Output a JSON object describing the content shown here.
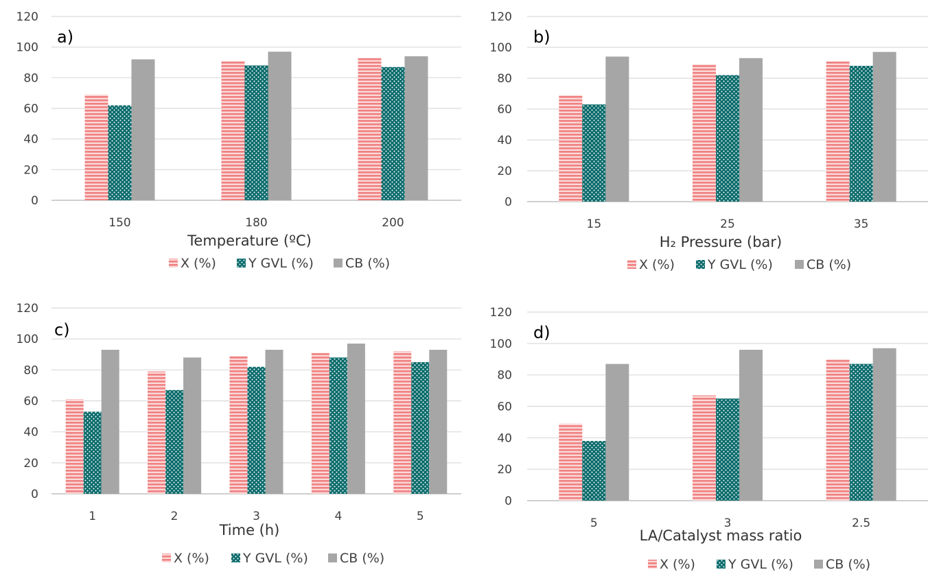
{
  "colors": {
    "x": "#f08080",
    "y": "#0b6b6b",
    "cb": "#a6a6a6"
  },
  "chart_data": [
    {
      "type": "bar",
      "panel_label": "a)",
      "categories": [
        "150",
        "180",
        "200"
      ],
      "xlabel": "Temperature (ºC)",
      "ylabel": "",
      "ylim": [
        0,
        120
      ],
      "yticks": [
        "0",
        "20",
        "40",
        "60",
        "80",
        "100",
        "120"
      ],
      "grid": true,
      "legend_position": "bottom",
      "series": [
        {
          "name": "X (%)",
          "values": [
            69,
            91,
            93
          ]
        },
        {
          "name": "Y GVL (%)",
          "values": [
            62,
            88,
            87
          ]
        },
        {
          "name": "CB (%)",
          "values": [
            92,
            97,
            94
          ]
        }
      ]
    },
    {
      "type": "bar",
      "panel_label": "b)",
      "categories": [
        "15",
        "25",
        "35"
      ],
      "xlabel": "H₂ Pressure (bar)",
      "ylabel": "",
      "ylim": [
        0,
        120
      ],
      "yticks": [
        "0",
        "20",
        "40",
        "60",
        "80",
        "100",
        "120"
      ],
      "grid": true,
      "legend_position": "bottom",
      "series": [
        {
          "name": "X (%)",
          "values": [
            69,
            89,
            91
          ]
        },
        {
          "name": "Y GVL (%)",
          "values": [
            63,
            82,
            88
          ]
        },
        {
          "name": "CB (%)",
          "values": [
            94,
            93,
            97
          ]
        }
      ]
    },
    {
      "type": "bar",
      "panel_label": "c)",
      "categories": [
        "1",
        "2",
        "3",
        "4",
        "5"
      ],
      "xlabel": "Time (h)",
      "ylabel": "",
      "ylim": [
        0,
        120
      ],
      "yticks": [
        "0",
        "20",
        "40",
        "60",
        "80",
        "100",
        "120"
      ],
      "grid": true,
      "legend_position": "bottom",
      "series": [
        {
          "name": "X (%)",
          "values": [
            61,
            79,
            89,
            91,
            92
          ]
        },
        {
          "name": "Y GVL (%)",
          "values": [
            53,
            67,
            82,
            88,
            85
          ]
        },
        {
          "name": "CB (%)",
          "values": [
            93,
            88,
            93,
            97,
            93
          ]
        }
      ]
    },
    {
      "type": "bar",
      "panel_label": "d)",
      "categories": [
        "5",
        "3",
        "2.5"
      ],
      "xlabel": "LA/Catalyst mass ratio",
      "ylabel": "",
      "ylim": [
        0,
        120
      ],
      "yticks": [
        "0",
        "20",
        "40",
        "60",
        "80",
        "100",
        "120"
      ],
      "grid": true,
      "legend_position": "bottom",
      "series": [
        {
          "name": "X (%)",
          "values": [
            49,
            67,
            90
          ]
        },
        {
          "name": "Y GVL (%)",
          "values": [
            38,
            65,
            87
          ]
        },
        {
          "name": "CB (%)",
          "values": [
            87,
            96,
            97
          ]
        }
      ]
    }
  ]
}
